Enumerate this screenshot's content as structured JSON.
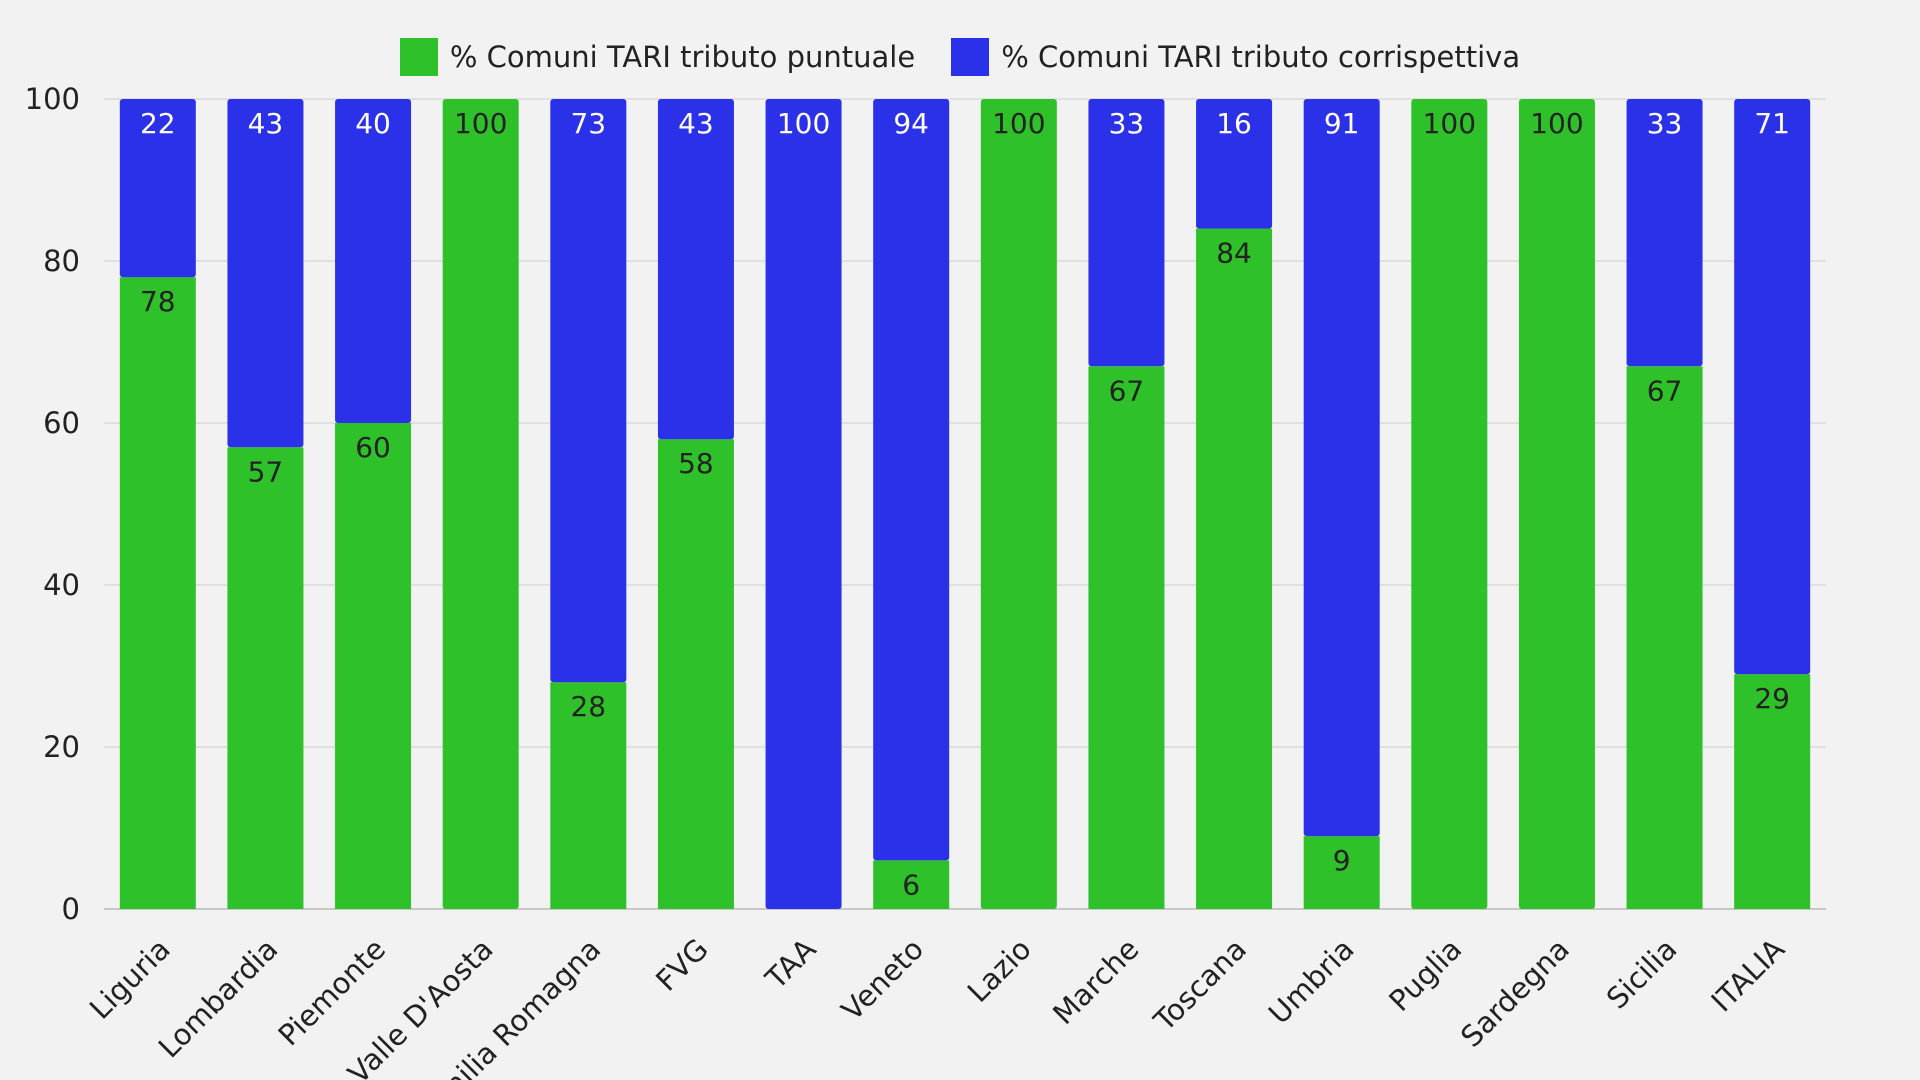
{
  "chart_data": {
    "type": "bar",
    "stacked": true,
    "categories": [
      "Liguria",
      "Lombardia",
      "Piemonte",
      "Valle D'Aosta",
      "Emilia Romagna",
      "FVG",
      "TAA",
      "Veneto",
      "Lazio",
      "Marche",
      "Toscana",
      "Umbria",
      "Puglia",
      "Sardegna",
      "Sicilia",
      "ITALIA"
    ],
    "series": [
      {
        "name": "% Comuni TARI tributo puntuale",
        "color": "#2fc12a",
        "values": [
          78,
          57,
          60,
          100,
          28,
          58,
          0,
          6,
          100,
          67,
          84,
          9,
          100,
          100,
          67,
          29
        ]
      },
      {
        "name": "% Comuni TARI tributo corrispettiva",
        "color": "#2b31e8",
        "values": [
          22,
          43,
          40,
          0,
          73,
          43,
          100,
          94,
          0,
          33,
          16,
          91,
          0,
          0,
          33,
          71
        ]
      }
    ],
    "ylim": [
      0,
      100
    ],
    "yticks": [
      0,
      20,
      40,
      60,
      80,
      100
    ],
    "grid": true,
    "legend_position": "top-center"
  }
}
